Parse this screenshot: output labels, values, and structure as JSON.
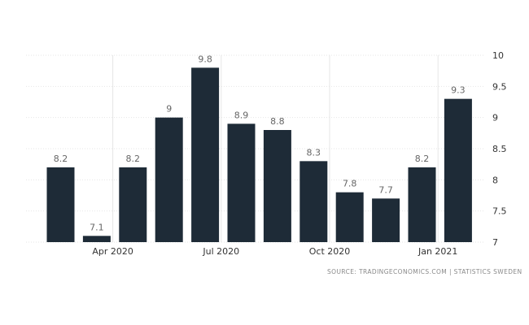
{
  "chart_data": {
    "type": "bar",
    "categories": [
      "Feb 2020",
      "Mar 2020",
      "Apr 2020",
      "May 2020",
      "Jun 2020",
      "Jul 2020",
      "Aug 2020",
      "Sep 2020",
      "Oct 2020",
      "Nov 2020",
      "Dec 2020",
      "Jan 2021"
    ],
    "values": [
      8.2,
      7.1,
      8.2,
      9,
      9.8,
      8.9,
      8.8,
      8.3,
      7.8,
      7.7,
      8.2,
      9.3
    ],
    "value_labels": [
      "8.2",
      "7.1",
      "8.2",
      "9",
      "9.8",
      "8.9",
      "8.8",
      "8.3",
      "7.8",
      "7.7",
      "8.2",
      "9.3"
    ],
    "x_tick_labels": [
      {
        "label": "Apr 2020",
        "index": 2
      },
      {
        "label": "Jul 2020",
        "index": 5
      },
      {
        "label": "Oct 2020",
        "index": 8
      },
      {
        "label": "Jan 2021",
        "index": 11
      }
    ],
    "y_ticks": [
      "10",
      "9.5",
      "9",
      "8.5",
      "8",
      "7.5",
      "7"
    ],
    "ylim": [
      7,
      10
    ],
    "y_axis_side": "right",
    "grid": true,
    "bar_color": "#1e2b37",
    "title": "",
    "xlabel": "",
    "ylabel": ""
  },
  "source_text": "SOURCE: TRADINGECONOMICS.COM | STATISTICS SWEDEN"
}
